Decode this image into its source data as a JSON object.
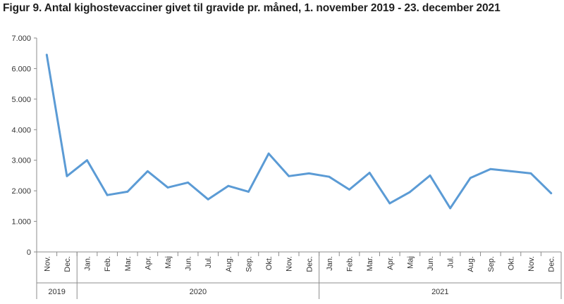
{
  "title": "Figur 9. Antal kighostevacciner givet til gravide pr. måned, 1. november 2019 - 23. december 2021",
  "chart_data": {
    "type": "line",
    "title": "Figur 9. Antal kighostevacciner givet til gravide pr. måned, 1. november 2019 - 23. december 2021",
    "xlabel": "",
    "ylabel": "",
    "ylim": [
      0,
      7000
    ],
    "yticks": [
      "0",
      "1.000",
      "2.000",
      "3.000",
      "4.000",
      "5.000",
      "6.000",
      "7.000"
    ],
    "grid": false,
    "legend": "none",
    "categories": [
      "Nov.",
      "Dec.",
      "Jan.",
      "Feb.",
      "Mar.",
      "Apr.",
      "Maj",
      "Jun.",
      "Jul.",
      "Aug.",
      "Sep.",
      "Okt.",
      "Nov.",
      "Dec.",
      "Jan.",
      "Feb.",
      "Mar.",
      "Apr.",
      "Maj",
      "Jun.",
      "Jul.",
      "Aug.",
      "Sep.",
      "Okt.",
      "Nov.",
      "Dec."
    ],
    "groups": [
      {
        "label": "2019",
        "count": 2
      },
      {
        "label": "2020",
        "count": 12
      },
      {
        "label": "2021",
        "count": 12
      }
    ],
    "series": [
      {
        "values": [
          6450,
          2480,
          3000,
          1860,
          1970,
          2640,
          2110,
          2270,
          1720,
          2160,
          1970,
          3220,
          2480,
          2570,
          2460,
          2040,
          2590,
          1590,
          1960,
          2500,
          1430,
          2420,
          2710,
          2640,
          2570,
          1920
        ],
        "color": "#5b9bd5"
      }
    ]
  }
}
